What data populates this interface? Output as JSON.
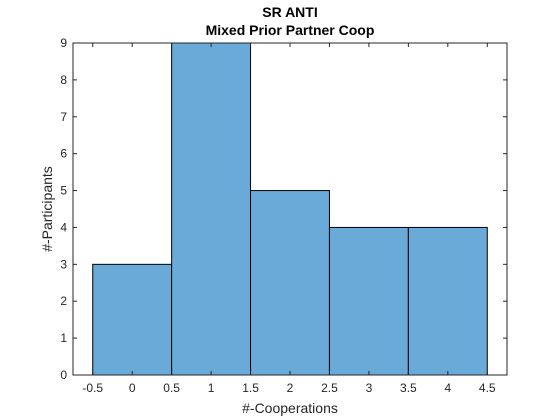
{
  "chart_data": {
    "type": "bar",
    "title": "SR ANTI",
    "subtitle": "Mixed Prior Partner Coop",
    "xlabel": "#-Cooperations",
    "ylabel": "#-Participants",
    "bin_edges": [
      -0.5,
      0.5,
      1.5,
      2.5,
      3.5,
      4.5
    ],
    "values": [
      3,
      9,
      5,
      4,
      4
    ],
    "xlim": [
      -0.75,
      4.75
    ],
    "ylim": [
      0,
      9
    ],
    "xticks": [
      "-0.5",
      "0",
      "0.5",
      "1",
      "1.5",
      "2",
      "2.5",
      "3",
      "3.5",
      "4",
      "4.5"
    ],
    "xtick_values": [
      -0.5,
      0,
      0.5,
      1,
      1.5,
      2,
      2.5,
      3,
      3.5,
      4,
      4.5
    ],
    "yticks": [
      "0",
      "1",
      "2",
      "3",
      "4",
      "5",
      "6",
      "7",
      "8",
      "9"
    ],
    "ytick_values": [
      0,
      1,
      2,
      3,
      4,
      5,
      6,
      7,
      8,
      9
    ],
    "bar_color": "#6aaad8",
    "edge_color": "#000000",
    "grid": false,
    "legend": false
  }
}
